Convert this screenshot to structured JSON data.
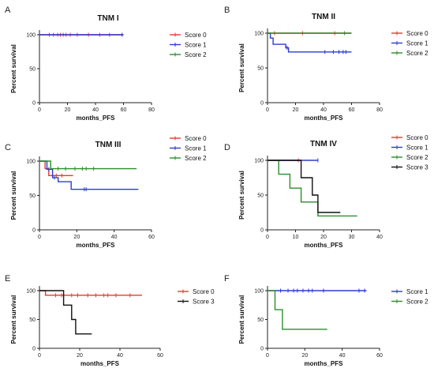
{
  "chart_data": [
    {
      "panel": "A",
      "type": "line",
      "title": "TNM I",
      "xlabel": "months_PFS",
      "ylabel": "Percent survival",
      "xlim": [
        0,
        80
      ],
      "ylim": [
        0,
        100
      ],
      "xticks": [
        0,
        20,
        40,
        60,
        80
      ],
      "yticks": [
        0,
        50,
        100
      ],
      "legend": "right",
      "series": [
        {
          "name": "Score 0",
          "color": "#e8392e",
          "steps": [
            [
              0,
              100
            ],
            [
              60,
              100
            ]
          ],
          "censors": [
            7,
            10,
            13,
            15,
            17,
            19,
            22,
            27,
            35,
            43,
            50
          ]
        },
        {
          "name": "Score 1",
          "color": "#2d3bd1",
          "steps": [
            [
              0,
              100
            ],
            [
              60,
              100
            ]
          ],
          "censors": [
            59
          ]
        },
        {
          "name": "Score 2",
          "color": "#2a8f2a",
          "steps": [],
          "censors": []
        }
      ]
    },
    {
      "panel": "B",
      "type": "line",
      "title": "TNM II",
      "xlabel": "months_PFS",
      "ylabel": "Percent survival",
      "xlim": [
        0,
        80
      ],
      "ylim": [
        0,
        100
      ],
      "xticks": [
        0,
        20,
        40,
        60,
        80
      ],
      "yticks": [
        0,
        50,
        100
      ],
      "legend": "right",
      "series": [
        {
          "name": "Score 0",
          "color": "#e8392e",
          "steps": [
            [
              0,
              100
            ],
            [
              60,
              100
            ]
          ],
          "censors": [
            5,
            25,
            48
          ]
        },
        {
          "name": "Score 1",
          "color": "#2d3bd1",
          "steps": [
            [
              0,
              100
            ],
            [
              2,
              100
            ],
            [
              2,
              93
            ],
            [
              4,
              93
            ],
            [
              4,
              84
            ],
            [
              13,
              84
            ],
            [
              13,
              79
            ],
            [
              15,
              79
            ],
            [
              15,
              73
            ],
            [
              60,
              73
            ]
          ],
          "censors": [
            14,
            41,
            47,
            51,
            54,
            56
          ]
        },
        {
          "name": "Score 2",
          "color": "#2a8f2a",
          "steps": [
            [
              0,
              100
            ],
            [
              60,
              100
            ]
          ],
          "censors": [
            55
          ]
        }
      ]
    },
    {
      "panel": "C",
      "type": "line",
      "title": "TNM III",
      "xlabel": "months_PFS",
      "ylabel": "Percent survival",
      "xlim": [
        0,
        60
      ],
      "ylim": [
        0,
        100
      ],
      "xticks": [
        0,
        20,
        40,
        60
      ],
      "yticks": [
        0,
        50,
        100
      ],
      "legend": "right",
      "series": [
        {
          "name": "Score 0",
          "color": "#e8392e",
          "steps": [
            [
              0,
              100
            ],
            [
              3,
              100
            ],
            [
              3,
              89
            ],
            [
              5,
              89
            ],
            [
              5,
              79
            ],
            [
              18,
              79
            ]
          ],
          "censors": [
            7,
            9,
            12
          ]
        },
        {
          "name": "Score 1",
          "color": "#2d3bd1",
          "steps": [
            [
              0,
              100
            ],
            [
              4,
              100
            ],
            [
              4,
              88
            ],
            [
              7,
              88
            ],
            [
              7,
              76
            ],
            [
              10,
              76
            ],
            [
              10,
              70
            ],
            [
              17,
              70
            ],
            [
              17,
              59
            ],
            [
              53,
              59
            ]
          ],
          "censors": [
            5,
            8,
            24,
            25
          ]
        },
        {
          "name": "Score 2",
          "color": "#2a8f2a",
          "steps": [
            [
              0,
              100
            ],
            [
              6,
              100
            ],
            [
              6,
              89
            ],
            [
              52,
              89
            ]
          ],
          "censors": [
            10,
            14,
            19,
            23,
            25,
            29
          ]
        }
      ]
    },
    {
      "panel": "D",
      "type": "line",
      "title": "TNM IV",
      "xlabel": "months_PFS",
      "ylabel": "Percent survival",
      "xlim": [
        0,
        40
      ],
      "ylim": [
        0,
        100
      ],
      "xticks": [
        0,
        10,
        20,
        30,
        40
      ],
      "yticks": [
        0,
        50,
        100
      ],
      "legend": "right",
      "series": [
        {
          "name": "Score 0",
          "color": "#e8392e",
          "steps": [
            [
              0,
              100
            ],
            [
              12,
              100
            ]
          ],
          "censors": [
            11
          ]
        },
        {
          "name": "Score 1",
          "color": "#2d3bd1",
          "steps": [
            [
              0,
              100
            ],
            [
              18,
              100
            ]
          ],
          "censors": [
            18
          ]
        },
        {
          "name": "Score 2",
          "color": "#2a8f2a",
          "steps": [
            [
              0,
              100
            ],
            [
              4,
              100
            ],
            [
              4,
              80
            ],
            [
              8,
              80
            ],
            [
              8,
              60
            ],
            [
              12,
              60
            ],
            [
              12,
              40
            ],
            [
              18,
              40
            ],
            [
              18,
              20
            ],
            [
              32,
              20
            ]
          ],
          "censors": []
        },
        {
          "name": "Score 3",
          "color": "#111111",
          "steps": [
            [
              0,
              100
            ],
            [
              12,
              100
            ],
            [
              12,
              75
            ],
            [
              16,
              75
            ],
            [
              16,
              50
            ],
            [
              18,
              50
            ],
            [
              18,
              25
            ],
            [
              26,
              25
            ]
          ],
          "censors": []
        }
      ]
    },
    {
      "panel": "E",
      "type": "line",
      "title": "",
      "xlabel": "months_PFS",
      "ylabel": "Percent survival",
      "xlim": [
        0,
        60
      ],
      "ylim": [
        0,
        100
      ],
      "xticks": [
        0,
        20,
        40,
        60
      ],
      "yticks": [
        0,
        50,
        100
      ],
      "legend": "right",
      "series": [
        {
          "name": "Score 0",
          "color": "#e8392e",
          "steps": [
            [
              0,
              100
            ],
            [
              3,
              100
            ],
            [
              3,
              92
            ],
            [
              51,
              92
            ]
          ],
          "censors": [
            8,
            11,
            16,
            19,
            24,
            28,
            32,
            34,
            38,
            45
          ]
        },
        {
          "name": "Score 3",
          "color": "#111111",
          "steps": [
            [
              0,
              100
            ],
            [
              12,
              100
            ],
            [
              12,
              75
            ],
            [
              16,
              75
            ],
            [
              16,
              50
            ],
            [
              18,
              50
            ],
            [
              18,
              25
            ],
            [
              26,
              25
            ]
          ],
          "censors": []
        }
      ]
    },
    {
      "panel": "F",
      "type": "line",
      "title": "",
      "xlabel": "months_PFS",
      "ylabel": "Percent survival",
      "xlim": [
        0,
        60
      ],
      "ylim": [
        0,
        100
      ],
      "xticks": [
        0,
        20,
        40,
        60
      ],
      "yticks": [
        0,
        50,
        100
      ],
      "legend": "right",
      "series": [
        {
          "name": "Score 1",
          "color": "#2d3bd1",
          "steps": [
            [
              0,
              100
            ],
            [
              53,
              100
            ]
          ],
          "censors": [
            7,
            11,
            14,
            16,
            19,
            22,
            24,
            30,
            49,
            52
          ]
        },
        {
          "name": "Score 2",
          "color": "#2a8f2a",
          "steps": [
            [
              0,
              100
            ],
            [
              4,
              100
            ],
            [
              4,
              67
            ],
            [
              8,
              67
            ],
            [
              8,
              33
            ],
            [
              32,
              33
            ]
          ],
          "censors": []
        }
      ]
    }
  ]
}
